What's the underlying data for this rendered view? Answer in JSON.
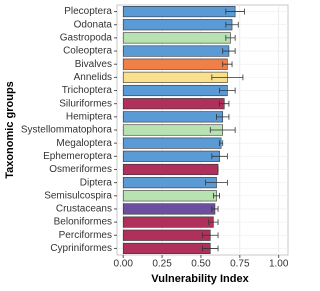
{
  "chart_data": {
    "type": "bar",
    "orientation": "horizontal",
    "xlabel": "Vulnerability Index",
    "ylabel": "Taxonomic groups",
    "categories": [
      "Plecoptera",
      "Odonata",
      "Gastropoda",
      "Coleoptera",
      "Bivalves",
      "Annelids",
      "Trichoptera",
      "Siluriformes",
      "Hemiptera",
      "Systellommatophora",
      "Megaloptera",
      "Ephemeroptera",
      "Osmeriformes",
      "Diptera",
      "Semisulcospira",
      "Crustaceans",
      "Beloniformes",
      "Perciformes",
      "Cypriniformes"
    ],
    "values": [
      0.72,
      0.7,
      0.69,
      0.68,
      0.67,
      0.67,
      0.67,
      0.65,
      0.64,
      0.64,
      0.63,
      0.62,
      0.61,
      0.6,
      0.6,
      0.59,
      0.58,
      0.56,
      0.56
    ],
    "errors": [
      0.06,
      0.04,
      0.03,
      0.04,
      0.03,
      0.1,
      0.05,
      0.03,
      0.04,
      0.08,
      0.01,
      0.05,
      0.0,
      0.07,
      0.02,
      0.02,
      0.03,
      0.05,
      0.05
    ],
    "colors": [
      "#5b9bd5",
      "#5b9bd5",
      "#b9e2b3",
      "#5b9bd5",
      "#f07f4a",
      "#f9e08f",
      "#5b9bd5",
      "#b0305c",
      "#5b9bd5",
      "#b9e2b3",
      "#5b9bd5",
      "#5b9bd5",
      "#b0305c",
      "#5b9bd5",
      "#b9e2b3",
      "#6b4f9e",
      "#b0305c",
      "#b0305c",
      "#b0305c"
    ],
    "xlim": [
      -0.04,
      1.06
    ],
    "xticks": [
      {
        "value": 0,
        "label": "0.00"
      },
      {
        "value": 0.25,
        "label": "0.25"
      },
      {
        "value": 0.5,
        "label": "0.50"
      },
      {
        "value": 0.75,
        "label": "0.75"
      },
      {
        "value": 1,
        "label": "1.00"
      }
    ],
    "grid": true
  }
}
